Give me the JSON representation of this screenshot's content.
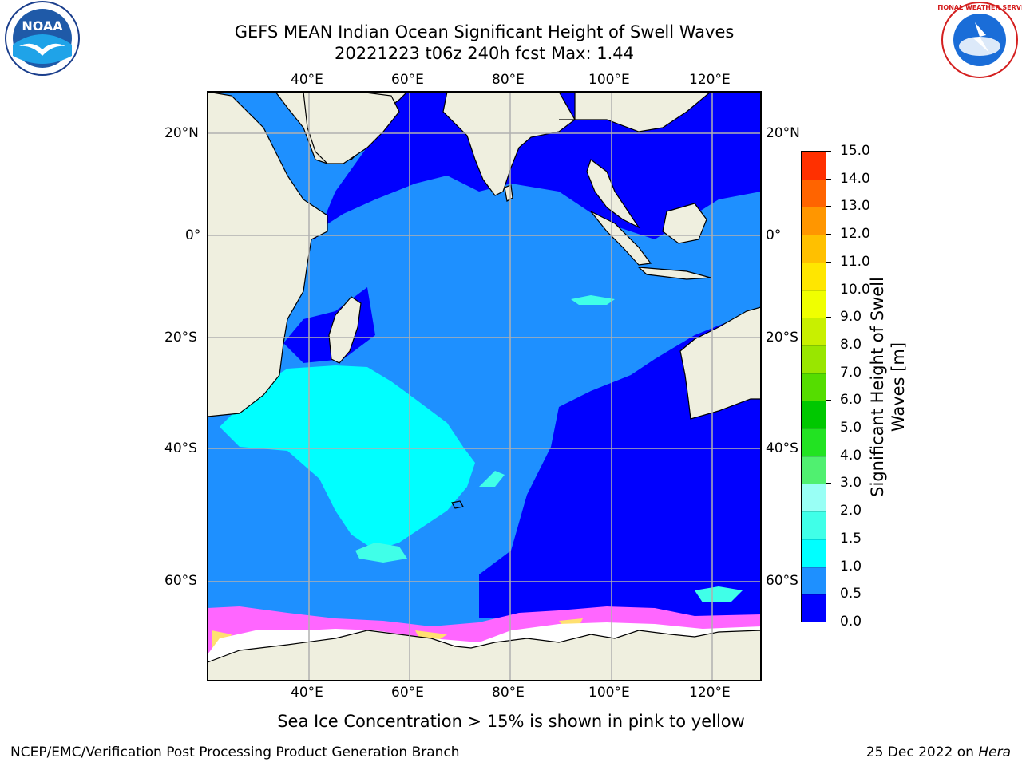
{
  "title": {
    "line1": "GEFS MEAN Indian Ocean Significant Height of Swell Waves",
    "line2": "20221223 t06z 240h fcst   Max: 1.44"
  },
  "axes": {
    "top_lon_labels": [
      "40°E",
      "60°E",
      "80°E",
      "100°E",
      "120°E"
    ],
    "bottom_lon_labels": [
      "40°E",
      "60°E",
      "80°E",
      "100°E",
      "120°E"
    ],
    "left_lat_labels": [
      "20°N",
      "0°",
      "20°S",
      "40°S",
      "60°S"
    ],
    "right_lat_labels": [
      "20°N",
      "0°",
      "20°S",
      "40°S",
      "60°S"
    ],
    "grid": true,
    "lon_range": [
      20,
      130
    ],
    "lat_range": [
      -75,
      28
    ]
  },
  "colorbar": {
    "label": "Significant Height of Swell Waves [m]",
    "ticks": [
      "0.0",
      "0.5",
      "1.0",
      "1.5",
      "2.0",
      "3.0",
      "4.0",
      "5.0",
      "6.0",
      "7.0",
      "8.0",
      "9.0",
      "10.0",
      "11.0",
      "12.0",
      "13.0",
      "14.0",
      "15.0"
    ],
    "colors": [
      "#0000ff",
      "#1e90ff",
      "#00ffff",
      "#40ffe8",
      "#99fff5",
      "#50f070",
      "#22e322",
      "#00c800",
      "#55dd00",
      "#99e600",
      "#c8f000",
      "#f0ff00",
      "#ffe600",
      "#ffc000",
      "#ff9600",
      "#ff6400",
      "#ff3000",
      "#ff0000"
    ]
  },
  "palette": {
    "land": "#efefdf",
    "ice_pink": "#ff66ff",
    "ice_yellow": "#ffe070",
    "grid": "#b0b0b0"
  },
  "logos": {
    "left": "NOAA",
    "right": "NATIONAL WEATHER SERVICE"
  },
  "footnote": "Sea Ice Concentration > 15% is shown in pink to yellow",
  "footer": {
    "left": "NCEP/EMC/Verification Post Processing Product Generation Branch",
    "right_date": "25 Dec 2022 on ",
    "right_machine": "Hera"
  }
}
